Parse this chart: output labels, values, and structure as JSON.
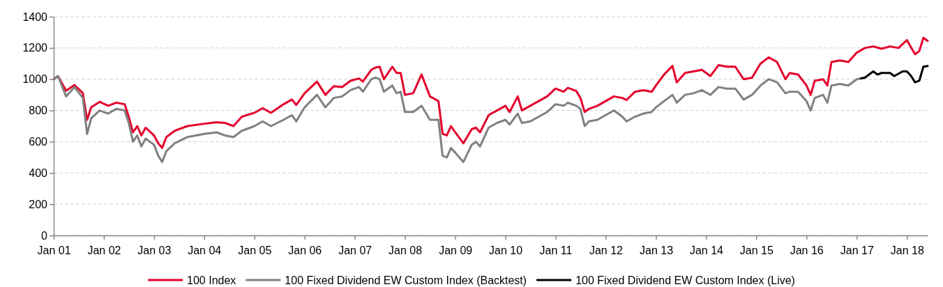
{
  "chart_data": {
    "type": "line",
    "xlim": [
      "2001-01",
      "2018-06"
    ],
    "xticks": [
      {
        "value": "2001-01",
        "label": "Jan 01"
      },
      {
        "value": "2002-01",
        "label": "Jan 02"
      },
      {
        "value": "2003-01",
        "label": "Jan 03"
      },
      {
        "value": "2004-01",
        "label": "Jan 04"
      },
      {
        "value": "2005-01",
        "label": "Jan 05"
      },
      {
        "value": "2006-01",
        "label": "Jan 06"
      },
      {
        "value": "2007-01",
        "label": "Jan 07"
      },
      {
        "value": "2008-01",
        "label": "Jan 08"
      },
      {
        "value": "2009-01",
        "label": "Jan 09"
      },
      {
        "value": "2010-01",
        "label": "Jan 10"
      },
      {
        "value": "2011-01",
        "label": "Jan 11"
      },
      {
        "value": "2012-01",
        "label": "Jan 12"
      },
      {
        "value": "2013-01",
        "label": "Jan 13"
      },
      {
        "value": "2014-01",
        "label": "Jan 14"
      },
      {
        "value": "2015-01",
        "label": "Jan 15"
      },
      {
        "value": "2016-01",
        "label": "Jan 16"
      },
      {
        "value": "2017-01",
        "label": "Jan 17"
      },
      {
        "value": "2018-01",
        "label": "Jan 18"
      }
    ],
    "ylim": [
      0,
      1400
    ],
    "yticks": [
      0,
      200,
      400,
      600,
      800,
      1000,
      1200,
      1400
    ],
    "grid": "y",
    "legend": "bottom",
    "line_style": "solid",
    "marker": "none",
    "series": [
      {
        "name": "100 Index",
        "color": "#e4002b",
        "x": [
          "2001-01",
          "2001-02",
          "2001-04",
          "2001-06",
          "2001-08",
          "2001-09",
          "2001-10",
          "2001-12",
          "2002-02",
          "2002-04",
          "2002-06",
          "2002-07",
          "2002-08",
          "2002-09",
          "2002-10",
          "2002-11",
          "2003-01",
          "2003-02",
          "2003-03",
          "2003-04",
          "2003-06",
          "2003-09",
          "2004-01",
          "2004-04",
          "2004-06",
          "2004-08",
          "2004-10",
          "2005-01",
          "2005-03",
          "2005-05",
          "2005-08",
          "2005-10",
          "2005-11",
          "2006-01",
          "2006-04",
          "2006-06",
          "2006-08",
          "2006-10",
          "2006-12",
          "2007-02",
          "2007-03",
          "2007-05",
          "2007-06",
          "2007-07",
          "2007-08",
          "2007-10",
          "2007-11",
          "2007-12",
          "2008-01",
          "2008-03",
          "2008-05",
          "2008-07",
          "2008-09",
          "2008-10",
          "2008-11",
          "2008-12",
          "2009-01",
          "2009-03",
          "2009-05",
          "2009-06",
          "2009-07",
          "2009-09",
          "2009-11",
          "2010-01",
          "2010-02",
          "2010-04",
          "2010-05",
          "2010-07",
          "2010-09",
          "2010-11",
          "2011-01",
          "2011-03",
          "2011-04",
          "2011-06",
          "2011-07",
          "2011-08",
          "2011-09",
          "2011-11",
          "2012-01",
          "2012-03",
          "2012-05",
          "2012-06",
          "2012-08",
          "2012-10",
          "2012-12",
          "2013-01",
          "2013-03",
          "2013-05",
          "2013-06",
          "2013-08",
          "2013-10",
          "2013-12",
          "2014-02",
          "2014-04",
          "2014-06",
          "2014-08",
          "2014-10",
          "2014-12",
          "2015-02",
          "2015-04",
          "2015-06",
          "2015-08",
          "2015-09",
          "2015-11",
          "2016-01",
          "2016-02",
          "2016-03",
          "2016-05",
          "2016-06",
          "2016-07",
          "2016-09",
          "2016-11",
          "2017-01",
          "2017-03",
          "2017-05",
          "2017-07",
          "2017-09",
          "2017-11",
          "2018-01",
          "2018-03",
          "2018-04",
          "2018-05",
          "2018-06"
        ],
        "values": [
          1000,
          1020,
          926,
          963,
          911,
          740,
          820,
          855,
          830,
          850,
          840,
          760,
          660,
          700,
          640,
          690,
          640,
          590,
          560,
          630,
          670,
          700,
          715,
          725,
          720,
          700,
          760,
          785,
          815,
          785,
          840,
          870,
          835,
          910,
          985,
          900,
          955,
          950,
          990,
          1005,
          985,
          1060,
          1075,
          1080,
          1000,
          1080,
          1040,
          1040,
          900,
          910,
          1030,
          890,
          860,
          650,
          640,
          700,
          660,
          590,
          680,
          690,
          660,
          770,
          800,
          830,
          790,
          890,
          800,
          830,
          860,
          890,
          940,
          920,
          945,
          925,
          880,
          790,
          810,
          830,
          860,
          890,
          880,
          867,
          920,
          930,
          920,
          960,
          1030,
          1085,
          980,
          1040,
          1050,
          1060,
          1020,
          1090,
          1080,
          1080,
          1000,
          1010,
          1100,
          1140,
          1110,
          1000,
          1040,
          1030,
          960,
          900,
          990,
          1000,
          960,
          1110,
          1120,
          1110,
          1170,
          1200,
          1210,
          1195,
          1210,
          1200,
          1250,
          1160,
          1180,
          1265,
          1245
        ]
      },
      {
        "name": "100 Fixed Dividend EW Custom Index (Backtest)",
        "color": "#808080",
        "x": [
          "2001-01",
          "2001-02",
          "2001-04",
          "2001-06",
          "2001-08",
          "2001-09",
          "2001-10",
          "2001-12",
          "2002-02",
          "2002-04",
          "2002-06",
          "2002-07",
          "2002-08",
          "2002-09",
          "2002-10",
          "2002-11",
          "2003-01",
          "2003-02",
          "2003-03",
          "2003-04",
          "2003-06",
          "2003-09",
          "2004-01",
          "2004-04",
          "2004-06",
          "2004-08",
          "2004-10",
          "2005-01",
          "2005-03",
          "2005-05",
          "2005-08",
          "2005-10",
          "2005-11",
          "2006-01",
          "2006-04",
          "2006-06",
          "2006-08",
          "2006-10",
          "2006-12",
          "2007-02",
          "2007-03",
          "2007-05",
          "2007-06",
          "2007-07",
          "2007-08",
          "2007-10",
          "2007-11",
          "2007-12",
          "2008-01",
          "2008-03",
          "2008-05",
          "2008-07",
          "2008-09",
          "2008-10",
          "2008-11",
          "2008-12",
          "2009-01",
          "2009-03",
          "2009-05",
          "2009-06",
          "2009-07",
          "2009-09",
          "2009-11",
          "2010-01",
          "2010-02",
          "2010-04",
          "2010-05",
          "2010-07",
          "2010-09",
          "2010-11",
          "2011-01",
          "2011-03",
          "2011-04",
          "2011-06",
          "2011-07",
          "2011-08",
          "2011-09",
          "2011-11",
          "2012-01",
          "2012-03",
          "2012-05",
          "2012-06",
          "2012-08",
          "2012-10",
          "2012-12",
          "2013-01",
          "2013-03",
          "2013-05",
          "2013-06",
          "2013-08",
          "2013-10",
          "2013-12",
          "2014-02",
          "2014-04",
          "2014-06",
          "2014-08",
          "2014-10",
          "2014-12",
          "2015-02",
          "2015-04",
          "2015-06",
          "2015-08",
          "2015-09",
          "2015-11",
          "2016-01",
          "2016-02",
          "2016-03",
          "2016-05",
          "2016-06",
          "2016-07",
          "2016-09",
          "2016-11",
          "2017-01",
          "2017-02"
        ],
        "values": [
          1000,
          1020,
          890,
          950,
          880,
          650,
          750,
          800,
          780,
          810,
          800,
          720,
          600,
          640,
          570,
          620,
          580,
          510,
          470,
          540,
          590,
          630,
          650,
          660,
          640,
          630,
          670,
          700,
          730,
          700,
          740,
          770,
          730,
          820,
          900,
          820,
          880,
          890,
          930,
          950,
          920,
          1000,
          1010,
          1000,
          920,
          960,
          910,
          920,
          790,
          790,
          830,
          740,
          740,
          510,
          500,
          560,
          530,
          470,
          580,
          600,
          570,
          690,
          720,
          740,
          710,
          780,
          720,
          730,
          760,
          790,
          840,
          830,
          850,
          830,
          810,
          700,
          730,
          740,
          770,
          800,
          760,
          730,
          760,
          780,
          790,
          820,
          860,
          900,
          850,
          900,
          910,
          930,
          900,
          950,
          940,
          940,
          870,
          900,
          960,
          1000,
          980,
          910,
          920,
          920,
          860,
          800,
          880,
          900,
          850,
          960,
          970,
          960,
          1000,
          1005
        ]
      },
      {
        "name": "100 Fixed Dividend EW Custom Index (Live)",
        "color": "#000000",
        "x": [
          "2017-02",
          "2017-03",
          "2017-05",
          "2017-06",
          "2017-07",
          "2017-09",
          "2017-10",
          "2017-12",
          "2018-01",
          "2018-02",
          "2018-03",
          "2018-04",
          "2018-05",
          "2018-06"
        ],
        "values": [
          1005,
          1010,
          1050,
          1030,
          1040,
          1040,
          1020,
          1050,
          1050,
          1020,
          980,
          990,
          1080,
          1085
        ]
      }
    ]
  }
}
